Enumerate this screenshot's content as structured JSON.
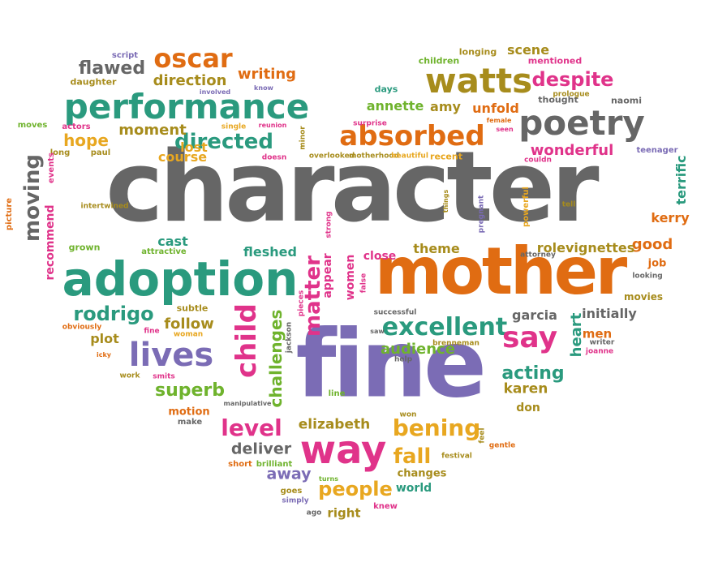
{
  "colors": {
    "gray": "#666666",
    "green": "#2a9a7e",
    "orange": "#e06c12",
    "purple": "#7b6cb5",
    "olive": "#a78c1c",
    "magenta": "#e0338a",
    "yellow": "#e8a720",
    "lime": "#6fb32d",
    "brown": "#9b7a1a"
  },
  "words": [
    {
      "text": "character",
      "color": "gray"
    },
    {
      "text": "mother",
      "color": "orange"
    },
    {
      "text": "fine",
      "color": "purple"
    },
    {
      "text": "adoption",
      "color": "green"
    },
    {
      "text": "performance",
      "color": "green"
    },
    {
      "text": "poetry",
      "color": "gray"
    },
    {
      "text": "watts",
      "color": "olive"
    },
    {
      "text": "absorbed",
      "color": "orange"
    },
    {
      "text": "oscar",
      "color": "orange"
    },
    {
      "text": "way",
      "color": "magenta"
    },
    {
      "text": "lives",
      "color": "purple"
    },
    {
      "text": "child",
      "color": "magenta"
    },
    {
      "text": "excellent",
      "color": "green"
    },
    {
      "text": "bening",
      "color": "yellow"
    },
    {
      "text": "despite",
      "color": "magenta"
    },
    {
      "text": "directed",
      "color": "green"
    },
    {
      "text": "level",
      "color": "magenta"
    },
    {
      "text": "rodrigo",
      "color": "green"
    },
    {
      "text": "flawed",
      "color": "gray"
    },
    {
      "text": "say",
      "color": "magenta"
    },
    {
      "text": "fall",
      "color": "yellow"
    },
    {
      "text": "people",
      "color": "yellow"
    },
    {
      "text": "superb",
      "color": "lime"
    },
    {
      "text": "moment",
      "color": "olive"
    },
    {
      "text": "direction",
      "color": "olive"
    },
    {
      "text": "writing",
      "color": "orange"
    },
    {
      "text": "hope",
      "color": "yellow"
    },
    {
      "text": "wonderful",
      "color": "magenta"
    },
    {
      "text": "acting",
      "color": "green"
    },
    {
      "text": "moving",
      "color": "gray"
    },
    {
      "text": "matter",
      "color": "magenta"
    },
    {
      "text": "challenges",
      "color": "lime"
    },
    {
      "text": "elizabeth",
      "color": "olive"
    },
    {
      "text": "deliver",
      "color": "gray"
    },
    {
      "text": "away",
      "color": "purple"
    },
    {
      "text": "annette",
      "color": "lime"
    },
    {
      "text": "amy",
      "color": "olive"
    },
    {
      "text": "unfold",
      "color": "orange"
    },
    {
      "text": "scene",
      "color": "olive"
    },
    {
      "text": "terrific",
      "color": "green"
    },
    {
      "text": "kerry",
      "color": "orange"
    },
    {
      "text": "good",
      "color": "orange"
    },
    {
      "text": "rolevignettes",
      "color": "olive"
    },
    {
      "text": "follow",
      "color": "olive"
    },
    {
      "text": "audience",
      "color": "lime"
    },
    {
      "text": "heart",
      "color": "green"
    },
    {
      "text": "karen",
      "color": "olive"
    },
    {
      "text": "lost",
      "color": "yellow"
    },
    {
      "text": "course",
      "color": "yellow"
    },
    {
      "text": "cast",
      "color": "green"
    },
    {
      "text": "fleshed",
      "color": "green"
    },
    {
      "text": "theme",
      "color": "olive"
    },
    {
      "text": "close",
      "color": "magenta"
    },
    {
      "text": "plot",
      "color": "olive"
    },
    {
      "text": "recommend",
      "color": "magenta"
    },
    {
      "text": "women",
      "color": "magenta"
    },
    {
      "text": "appear",
      "color": "magenta"
    },
    {
      "text": "garcia",
      "color": "gray"
    },
    {
      "text": "initially",
      "color": "gray"
    },
    {
      "text": "men",
      "color": "orange"
    },
    {
      "text": "don",
      "color": "olive"
    },
    {
      "text": "right",
      "color": "olive"
    },
    {
      "text": "world",
      "color": "green"
    },
    {
      "text": "changes",
      "color": "olive"
    },
    {
      "text": "motion",
      "color": "orange"
    },
    {
      "text": "job",
      "color": "orange"
    },
    {
      "text": "movies",
      "color": "olive"
    },
    {
      "text": "thought",
      "color": "gray"
    },
    {
      "text": "naomi",
      "color": "gray"
    },
    {
      "text": "children",
      "color": "lime"
    },
    {
      "text": "longing",
      "color": "olive"
    },
    {
      "text": "mentioned",
      "color": "magenta"
    },
    {
      "text": "daughter",
      "color": "olive"
    },
    {
      "text": "script",
      "color": "purple"
    },
    {
      "text": "days",
      "color": "green"
    },
    {
      "text": "actors",
      "color": "magenta"
    },
    {
      "text": "moves",
      "color": "lime"
    },
    {
      "text": "long",
      "color": "olive"
    },
    {
      "text": "paul",
      "color": "olive"
    },
    {
      "text": "events",
      "color": "magenta"
    },
    {
      "text": "picture",
      "color": "orange"
    },
    {
      "text": "intertwined",
      "color": "olive"
    },
    {
      "text": "grown",
      "color": "lime"
    },
    {
      "text": "attractive",
      "color": "lime"
    },
    {
      "text": "subtle",
      "color": "olive"
    },
    {
      "text": "obviously",
      "color": "orange"
    },
    {
      "text": "fine",
      "color": "magenta"
    },
    {
      "text": "woman",
      "color": "yellow"
    },
    {
      "text": "icky",
      "color": "orange"
    },
    {
      "text": "work",
      "color": "olive"
    },
    {
      "text": "smits",
      "color": "magenta"
    },
    {
      "text": "make",
      "color": "gray"
    },
    {
      "text": "short",
      "color": "orange"
    },
    {
      "text": "brilliant",
      "color": "lime"
    },
    {
      "text": "goes",
      "color": "olive"
    },
    {
      "text": "simply",
      "color": "purple"
    },
    {
      "text": "ago",
      "color": "gray"
    },
    {
      "text": "turns",
      "color": "lime"
    },
    {
      "text": "knew",
      "color": "magenta"
    },
    {
      "text": "festival",
      "color": "olive"
    },
    {
      "text": "gentle",
      "color": "orange"
    },
    {
      "text": "feel",
      "color": "olive"
    },
    {
      "text": "won",
      "color": "olive"
    },
    {
      "text": "line",
      "color": "lime"
    },
    {
      "text": "help",
      "color": "gray"
    },
    {
      "text": "brenneman",
      "color": "olive"
    },
    {
      "text": "successful",
      "color": "gray"
    },
    {
      "text": "saw",
      "color": "gray"
    },
    {
      "text": "pieces",
      "color": "magenta"
    },
    {
      "text": "jackson",
      "color": "gray"
    },
    {
      "text": "manipulative",
      "color": "gray"
    },
    {
      "text": "false",
      "color": "magenta"
    },
    {
      "text": "strong",
      "color": "magenta"
    },
    {
      "text": "pregnant",
      "color": "purple"
    },
    {
      "text": "powerful",
      "color": "yellow"
    },
    {
      "text": "things",
      "color": "olive"
    },
    {
      "text": "tell",
      "color": "olive"
    },
    {
      "text": "attorney",
      "color": "gray"
    },
    {
      "text": "looking",
      "color": "gray"
    },
    {
      "text": "writer",
      "color": "gray"
    },
    {
      "text": "joanne",
      "color": "magenta"
    },
    {
      "text": "couldn",
      "color": "magenta"
    },
    {
      "text": "teenager",
      "color": "purple"
    },
    {
      "text": "prologue",
      "color": "olive"
    },
    {
      "text": "female",
      "color": "orange"
    },
    {
      "text": "seen",
      "color": "magenta"
    },
    {
      "text": "surprise",
      "color": "magenta"
    },
    {
      "text": "motherhood",
      "color": "olive"
    },
    {
      "text": "beautiful",
      "color": "yellow"
    },
    {
      "text": "recent",
      "color": "yellow"
    },
    {
      "text": "overlooked",
      "color": "olive"
    },
    {
      "text": "minor",
      "color": "olive"
    },
    {
      "text": "single",
      "color": "yellow"
    },
    {
      "text": "reunion",
      "color": "magenta"
    },
    {
      "text": "doesn",
      "color": "magenta"
    },
    {
      "text": "involved",
      "color": "purple"
    },
    {
      "text": "know",
      "color": "purple"
    },
    {
      "text": "elpidia",
      "color": "olive"
    }
  ]
}
